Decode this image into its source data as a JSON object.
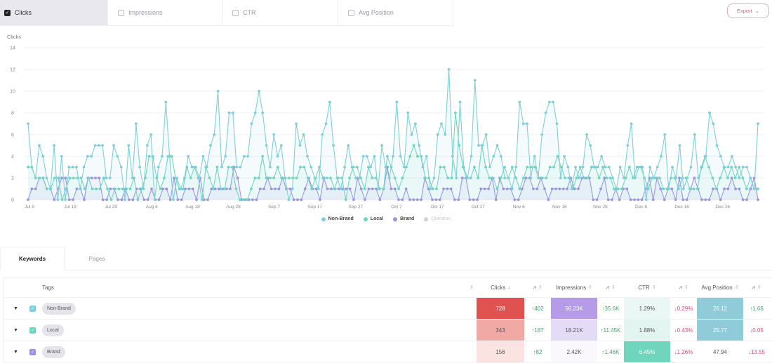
{
  "metric_tabs": [
    {
      "label": "Clicks",
      "checked": true
    },
    {
      "label": "Impressions",
      "checked": false
    },
    {
      "label": "CTR",
      "checked": false
    },
    {
      "label": "Avg Position",
      "checked": false
    }
  ],
  "export": {
    "label": "Export",
    "icon": "chevron-down-icon"
  },
  "chart": {
    "ylabel": "Clicks"
  },
  "chart_data": {
    "type": "line",
    "title": "",
    "ylabel": "Clicks",
    "xlabel": "",
    "ylim": [
      0,
      14
    ],
    "yticks": [
      0,
      2,
      4,
      6,
      8,
      10,
      12,
      14
    ],
    "xticks": [
      "Jul 9",
      "Jul 19",
      "Jul 29",
      "Aug 8",
      "Aug 18",
      "Aug 28",
      "Sep 7",
      "Sep 17",
      "Sep 27",
      "Oct 7",
      "Oct 17",
      "Oct 27",
      "Nov 6",
      "Nov 16",
      "Nov 26",
      "Dec 6",
      "Dec 16",
      "Dec 26"
    ],
    "grid": true,
    "legend_position": "bottom",
    "series": [
      {
        "name": "Non-Brand",
        "color": "#7fcfd9",
        "values": [
          7,
          3,
          2,
          5,
          4,
          2,
          1,
          5,
          0,
          4,
          0,
          3,
          3,
          3,
          1,
          3,
          4,
          4,
          5,
          5,
          5,
          2,
          2,
          5,
          4,
          3,
          0,
          5,
          2,
          7,
          3,
          1,
          5,
          6,
          0,
          3,
          4,
          9,
          4,
          0,
          2,
          1,
          2,
          4,
          3,
          3,
          2,
          4,
          3,
          5,
          6,
          10,
          3,
          4,
          8,
          8,
          3,
          3,
          4,
          4,
          7,
          8,
          10,
          8,
          5,
          3,
          6,
          4,
          5,
          2,
          0,
          1,
          7,
          5,
          6,
          4,
          3,
          2,
          1,
          6,
          7,
          9,
          5,
          2,
          1,
          3,
          5,
          3,
          2,
          2,
          4,
          4,
          3,
          4,
          1,
          5,
          3,
          2,
          4,
          9,
          4,
          3,
          8,
          6,
          7,
          5,
          3,
          4,
          1,
          2,
          6,
          7,
          6,
          12,
          4,
          2,
          9,
          3,
          2,
          4,
          11,
          5,
          5,
          6,
          3,
          4,
          5,
          4,
          2,
          2,
          1,
          3,
          9,
          7,
          7,
          2,
          4,
          2,
          6,
          8,
          9,
          9,
          7,
          2,
          4,
          3,
          1,
          3,
          2,
          3,
          6,
          5,
          3,
          3,
          4,
          3,
          3,
          2,
          1,
          3,
          2,
          5,
          7,
          2,
          3,
          3,
          0,
          3,
          2,
          3,
          4,
          6,
          1,
          3,
          2,
          5,
          1,
          2,
          3,
          6,
          2,
          3,
          4,
          8,
          7,
          5,
          4,
          3,
          3,
          4,
          3,
          2,
          3,
          3,
          2,
          1,
          7
        ]
      },
      {
        "name": "Local",
        "color": "#6fd6bd",
        "values": [
          3,
          3,
          2,
          2,
          2,
          1,
          1,
          2,
          2,
          0,
          1,
          2,
          2,
          2,
          2,
          1,
          2,
          1,
          1,
          1,
          2,
          1,
          0,
          1,
          1,
          1,
          1,
          1,
          2,
          0,
          1,
          2,
          4,
          4,
          2,
          1,
          2,
          4,
          4,
          2,
          1,
          1,
          3,
          2,
          3,
          2,
          0,
          3,
          2,
          1,
          3,
          1,
          1,
          3,
          3,
          1,
          0,
          0,
          0,
          1,
          2,
          2,
          4,
          2,
          2,
          2,
          3,
          2,
          2,
          2,
          2,
          2,
          3,
          3,
          2,
          1,
          2,
          3,
          2,
          2,
          2,
          1,
          2,
          2,
          0,
          2,
          3,
          3,
          2,
          1,
          3,
          2,
          2,
          1,
          1,
          4,
          3,
          2,
          1,
          2,
          3,
          4,
          5,
          4,
          4,
          2,
          2,
          1,
          1,
          3,
          3,
          2,
          2,
          8,
          5,
          3,
          2,
          2,
          3,
          2,
          5,
          3,
          2,
          2,
          1,
          2,
          3,
          2,
          3,
          2,
          1,
          2,
          3,
          3,
          3,
          2,
          2,
          2,
          3,
          3,
          4,
          3,
          2,
          2,
          1,
          2,
          3,
          2,
          2,
          3,
          3,
          2,
          3,
          2,
          2,
          1,
          1,
          1,
          2,
          3,
          2,
          3,
          3,
          2,
          1,
          2,
          2,
          2,
          1,
          1,
          2,
          2,
          1,
          2,
          2,
          1,
          1,
          1,
          3,
          4,
          3,
          2,
          1,
          2,
          3,
          2,
          3,
          2,
          3,
          2,
          1,
          2,
          1,
          1
        ]
      },
      {
        "name": "Brand",
        "color": "#a08fe0",
        "values": [
          0,
          1,
          1,
          2,
          2,
          1,
          1,
          0,
          1,
          2,
          2,
          0,
          0,
          1,
          1,
          0,
          2,
          2,
          2,
          2,
          0,
          0,
          1,
          1,
          0,
          0,
          1,
          0,
          0,
          1,
          1,
          0,
          0,
          1,
          0,
          0,
          1,
          1,
          0,
          2,
          0,
          0,
          1,
          1,
          1,
          0,
          2,
          0,
          0,
          1,
          1,
          1,
          1,
          1,
          1,
          3,
          2,
          0,
          0,
          0,
          0,
          0,
          1,
          1,
          2,
          1,
          1,
          1,
          2,
          1,
          1,
          0,
          0,
          0,
          1,
          2,
          1,
          1,
          0,
          2,
          1,
          1,
          1,
          1,
          1,
          1,
          1,
          0,
          2,
          1,
          0,
          1,
          1,
          1,
          0,
          1,
          3,
          1,
          1,
          0,
          0,
          1,
          0,
          0,
          0,
          0,
          2,
          1,
          0,
          0,
          0,
          1,
          1,
          1,
          0,
          0,
          2,
          2,
          0,
          0,
          0,
          1,
          1,
          1,
          2,
          0,
          2,
          1,
          1,
          1,
          0,
          0,
          1,
          2,
          2,
          1,
          1,
          2,
          1,
          0,
          1,
          1,
          1,
          1,
          1,
          2,
          1,
          1,
          2,
          2,
          2,
          0,
          0,
          1,
          2,
          0,
          0,
          1,
          0,
          1,
          1,
          0,
          0,
          0,
          0,
          1,
          2,
          0,
          2,
          1,
          0,
          1,
          1,
          0,
          2,
          0,
          0,
          1,
          2,
          1,
          0,
          0,
          0,
          1,
          1,
          0,
          1,
          1,
          2,
          1,
          1,
          0,
          0,
          1,
          2,
          0
        ]
      },
      {
        "name": "Question",
        "color": "#d0d0da",
        "values": [],
        "hidden": true
      }
    ]
  },
  "legend": [
    {
      "label": "Non-Brand",
      "color": "#7fcfd9",
      "active": true
    },
    {
      "label": "Local",
      "color": "#6fd6bd",
      "active": true
    },
    {
      "label": "Brand",
      "color": "#a08fe0",
      "active": true
    },
    {
      "label": "Question",
      "color": "#d0d0da",
      "active": false
    }
  ],
  "tabs": [
    {
      "label": "Keywords",
      "active": true
    },
    {
      "label": "Pages",
      "active": false
    }
  ],
  "table": {
    "headers": {
      "tags": "Tags",
      "clicks": "Clicks",
      "impressions": "Impressions",
      "ctr": "CTR",
      "avg_position": "Avg Position"
    },
    "rows": [
      {
        "tag": "Non-Brand",
        "check_color": "#7fcfd9",
        "clicks": "728",
        "clicks_delta": "↑402",
        "impressions": "56.23K",
        "impressions_delta": "↑35.6K",
        "ctr": "1.29%",
        "ctr_delta": "↓0.29%",
        "avg_position": "26.12",
        "avg_position_delta": "↑1.66",
        "colors": {
          "clicks": "#e0524f",
          "impressions": "#b69ce8",
          "ctr": "#eaf7f5",
          "pos": "#8fcbd8"
        },
        "text_light": {
          "clicks": true,
          "impressions": true,
          "ctr": false,
          "pos": true
        }
      },
      {
        "tag": "Local",
        "check_color": "#6fd6bd",
        "clicks": "343",
        "clicks_delta": "↑187",
        "impressions": "18.21K",
        "impressions_delta": "↑11.45K",
        "ctr": "1.88%",
        "ctr_delta": "↓0.43%",
        "avg_position": "25.77",
        "avg_position_delta": "↓0.05",
        "colors": {
          "clicks": "#f0a9a5",
          "impressions": "#e4dcf6",
          "ctr": "#e3f5f1",
          "pos": "#8fcbd8"
        },
        "text_light": {
          "clicks": false,
          "impressions": false,
          "ctr": false,
          "pos": true
        }
      },
      {
        "tag": "Brand",
        "check_color": "#a08fe0",
        "clicks": "156",
        "clicks_delta": "↑82",
        "impressions": "2.42K",
        "impressions_delta": "↑1.46K",
        "ctr": "6.45%",
        "ctr_delta": "↓1.26%",
        "avg_position": "47.94",
        "avg_position_delta": "↓13.55",
        "colors": {
          "clicks": "#fbe3e1",
          "impressions": "#faf8fd",
          "ctr": "#6fd6bd",
          "pos": "#ffffff"
        },
        "text_light": {
          "clicks": false,
          "impressions": false,
          "ctr": true,
          "pos": false
        }
      }
    ]
  }
}
